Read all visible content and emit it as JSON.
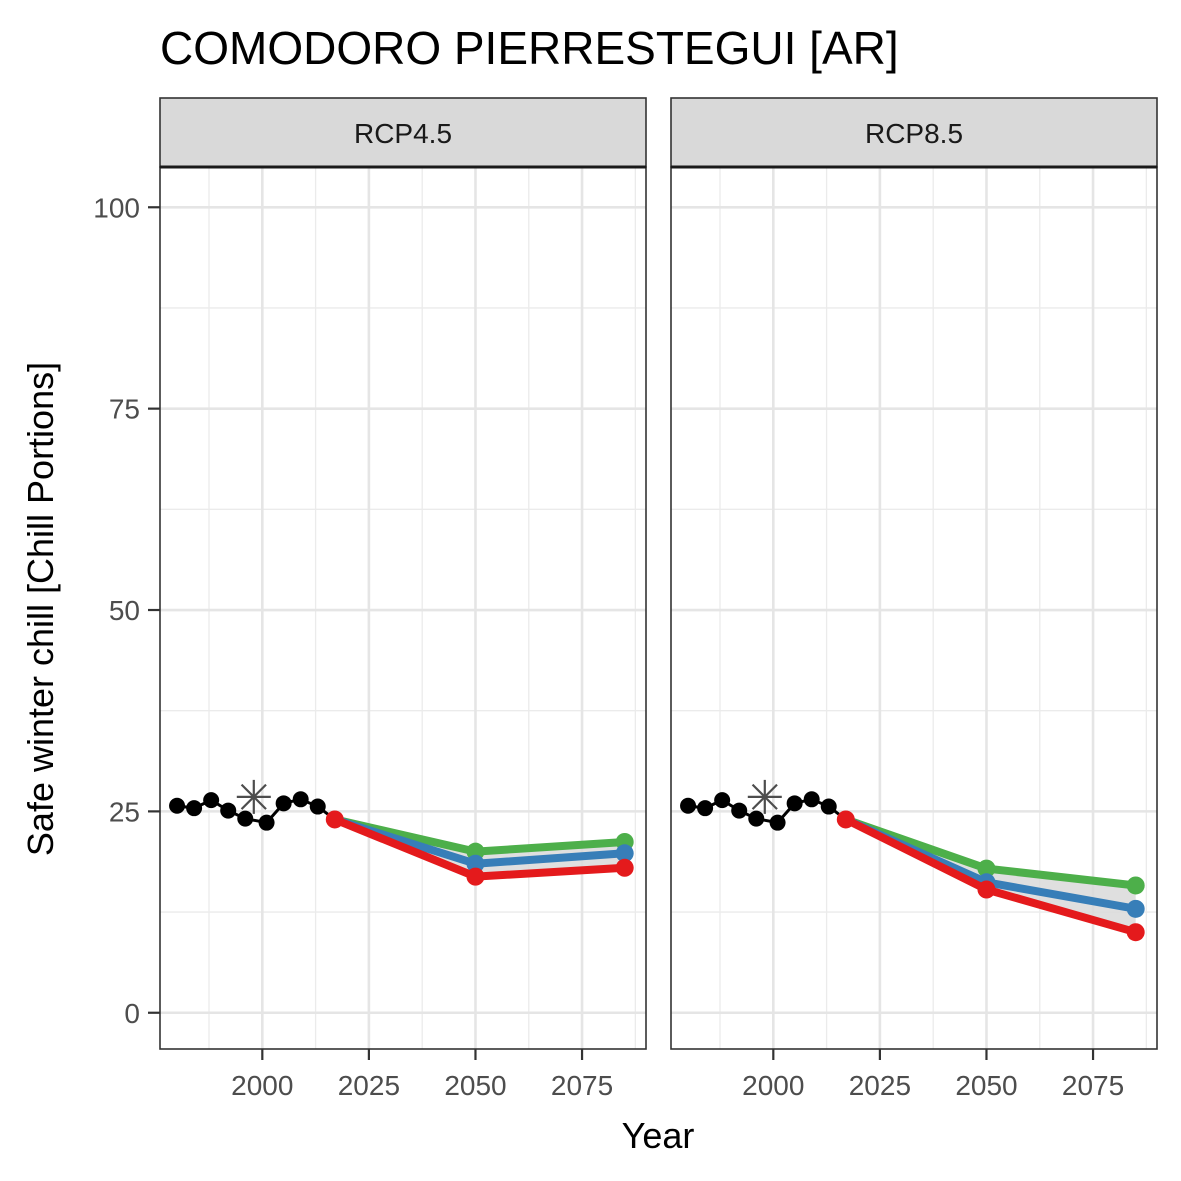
{
  "chart_data": {
    "type": "line",
    "title": "COMODORO PIERRESTEGUI [AR]",
    "xlabel": "Year",
    "ylabel": "Safe winter chill [Chill Portions]",
    "xlim": [
      1976,
      2090
    ],
    "ylim": [
      -4.5,
      105
    ],
    "x_ticks": [
      2000,
      2025,
      2050,
      2075
    ],
    "y_ticks": [
      0,
      25,
      50,
      75,
      100
    ],
    "grid": true,
    "colors": {
      "historic": "#000000",
      "baseline_marker": "#4d4d4d",
      "band": "#d9d9d9",
      "optimistic": "#4daf4a",
      "intermediate": "#377eb8",
      "pessimistic": "#e41a1c"
    },
    "panels": [
      {
        "label": "RCP4.5",
        "historic": {
          "x": [
            1980,
            1984,
            1988,
            1992,
            1996,
            2001,
            2005,
            2009,
            2013
          ],
          "y": [
            25.7,
            25.4,
            26.4,
            25.1,
            24.1,
            23.6,
            26.0,
            26.5,
            25.6
          ]
        },
        "baseline": {
          "x": 1998,
          "y": 26.8
        },
        "series": [
          {
            "x": [
              2017,
              2050,
              2085
            ],
            "y": [
              24.0,
              20.0,
              21.2
            ]
          },
          {
            "x": [
              2017,
              2050,
              2085
            ],
            "y": [
              24.0,
              18.5,
              19.8
            ]
          },
          {
            "x": [
              2017,
              2050,
              2085
            ],
            "y": [
              24.0,
              16.9,
              18.0
            ]
          }
        ]
      },
      {
        "label": "RCP8.5",
        "historic": {
          "x": [
            1980,
            1984,
            1988,
            1992,
            1996,
            2001,
            2005,
            2009,
            2013
          ],
          "y": [
            25.7,
            25.4,
            26.4,
            25.1,
            24.1,
            23.6,
            26.0,
            26.5,
            25.6
          ]
        },
        "baseline": {
          "x": 1998,
          "y": 26.8
        },
        "series": [
          {
            "x": [
              2017,
              2050,
              2085
            ],
            "y": [
              24.0,
              17.9,
              15.8
            ]
          },
          {
            "x": [
              2017,
              2050,
              2085
            ],
            "y": [
              24.0,
              16.2,
              12.9
            ]
          },
          {
            "x": [
              2017,
              2050,
              2085
            ],
            "y": [
              24.0,
              15.3,
              10.0
            ]
          }
        ]
      }
    ]
  }
}
